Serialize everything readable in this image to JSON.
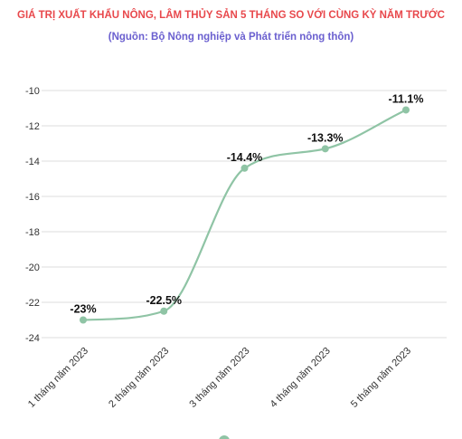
{
  "colors": {
    "title": "#e8484c",
    "subtitle": "#6a5fcf",
    "line": "#8fc4a5",
    "grid": "#dedede"
  },
  "chart_data": {
    "type": "line",
    "title": "GIÁ TRỊ XUẤT KHẨU NÔNG, LÂM THỦY SẢN 5 THÁNG SO VỚI CÙNG KỲ NĂM TRƯỚC",
    "subtitle": "(Nguồn: Bộ Nông nghiệp và Phát triển nông thôn)",
    "categories": [
      "1 tháng năm 2023",
      "2 tháng năm 2023",
      "3 tháng năm 2023",
      "4 tháng năm 2023",
      "5 tháng năm 2023"
    ],
    "values": [
      -23,
      -22.5,
      -14.4,
      -13.3,
      -11.1
    ],
    "data_labels": [
      "-23%",
      "-22.5%",
      "-14.4%",
      "-13.3%",
      "-11.1%"
    ],
    "y_ticks": [
      -10,
      -12,
      -14,
      -16,
      -18,
      -20,
      -22,
      -24
    ],
    "ylim": [
      -24,
      -10
    ],
    "grid": true,
    "legend": "bottom",
    "smooth": true
  }
}
